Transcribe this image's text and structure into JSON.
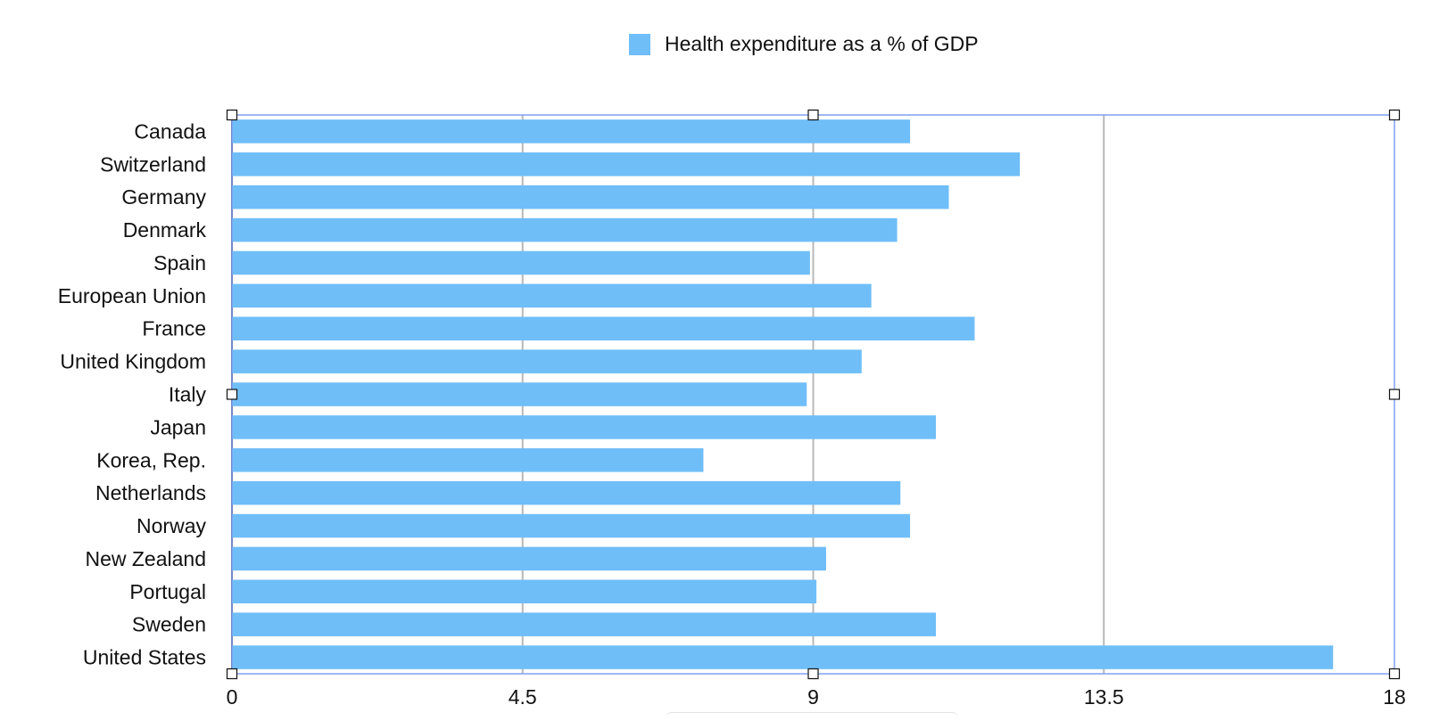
{
  "chart_data": {
    "type": "bar",
    "orientation": "horizontal",
    "title": "",
    "xlabel": "",
    "ylabel": "",
    "categories": [
      "Canada",
      "Switzerland",
      "Germany",
      "Denmark",
      "Spain",
      "European Union",
      "France",
      "United Kingdom",
      "Italy",
      "Japan",
      "Korea, Rep.",
      "Netherlands",
      "Norway",
      "New Zealand",
      "Portugal",
      "Sweden",
      "United States"
    ],
    "series": [
      {
        "name": "Health expenditure as a % of GDP",
        "color": "#6fbef8",
        "values": [
          10.5,
          12.2,
          11.1,
          10.3,
          8.95,
          9.9,
          11.5,
          9.75,
          8.9,
          10.9,
          7.3,
          10.35,
          10.5,
          9.2,
          9.05,
          10.9,
          17.05
        ]
      }
    ],
    "xlim": [
      0,
      18
    ],
    "ticks": [
      "0",
      "4.5",
      "9",
      "13.5",
      "18"
    ],
    "tick_values": [
      0,
      4.5,
      9,
      13.5,
      18
    ],
    "grid": true,
    "legend_position": "top-center"
  },
  "colors": {
    "bar": "#6fbef8",
    "grid": "#b8b8b8",
    "selection": "#7f9ff2"
  }
}
